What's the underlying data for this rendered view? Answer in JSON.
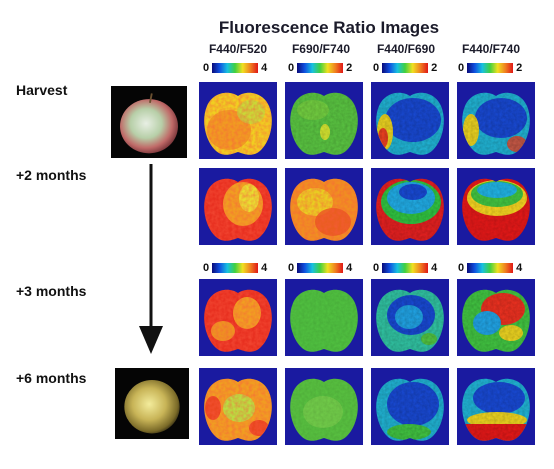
{
  "figure": {
    "title": "Fluorescence Ratio Images",
    "columns": [
      {
        "label": "F440/F520"
      },
      {
        "label": "F690/F740"
      },
      {
        "label": "F440/F690"
      },
      {
        "label": "F440/F740"
      }
    ],
    "scales_top": [
      {
        "min": "0",
        "max": "4"
      },
      {
        "min": "0",
        "max": "2"
      },
      {
        "min": "0",
        "max": "2"
      },
      {
        "min": "0",
        "max": "2"
      }
    ],
    "scales_mid": [
      {
        "min": "0",
        "max": "4"
      },
      {
        "min": "0",
        "max": "4"
      },
      {
        "min": "0",
        "max": "4"
      },
      {
        "min": "0",
        "max": "4"
      }
    ],
    "rows": [
      {
        "label": "Harvest"
      },
      {
        "label": "+2 months"
      },
      {
        "label": "+3 months"
      },
      {
        "label": "+6 months"
      }
    ]
  }
}
